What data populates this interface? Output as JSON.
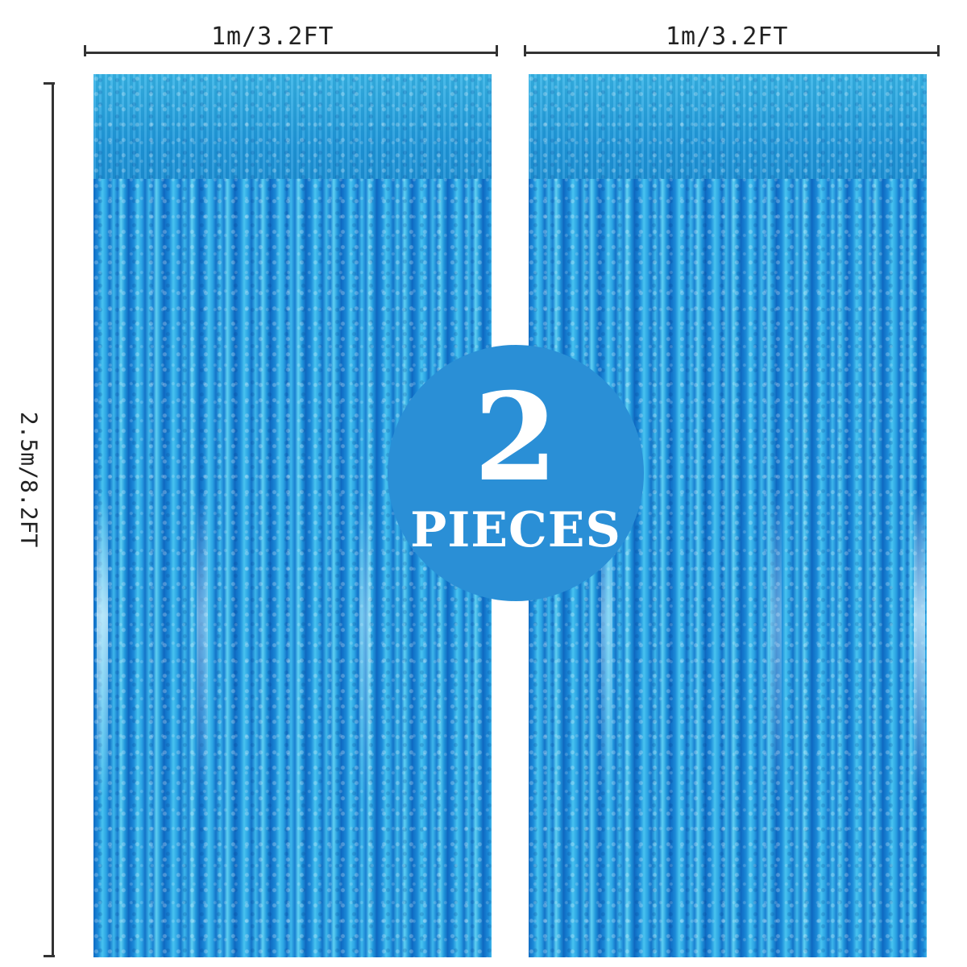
{
  "dimensions": {
    "left_width_label": "1m/3.2FT",
    "right_width_label": "1m/3.2FT",
    "height_label": "2.5m/8.2FT"
  },
  "badge": {
    "count": "2",
    "unit_label": "PIECES",
    "color": "#2a8fd6"
  },
  "colors": {
    "curtain_primary": "#1c8ad8",
    "curtain_highlight": "#48c3ef",
    "curtain_shadow": "#0f6cc4"
  },
  "curtains": [
    {
      "name": "left-curtain"
    },
    {
      "name": "right-curtain"
    }
  ]
}
